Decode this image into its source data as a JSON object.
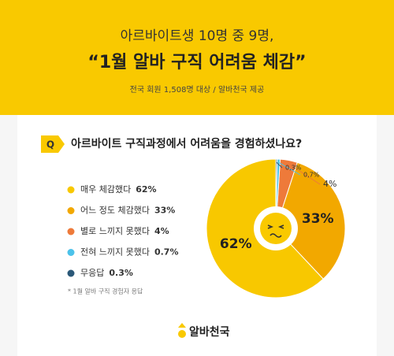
{
  "chart_data": {
    "type": "pie",
    "title": "아르바이트생 10명 중 9명,",
    "subtitle": "“1월 알바 구직 어려움 체감”",
    "source": "전국 회원 1,508명 대상 / 알바천국 제공",
    "question_badge": "Q",
    "question": "아르바이트 구직과정에서 어려움을 경험하셨나요?",
    "categories": [
      "매우 체감했다",
      "어느 정도 체감했다",
      "별로 느끼지 못했다",
      "전혀 느끼지 못했다",
      "무응답"
    ],
    "values": [
      62,
      33,
      4,
      0.7,
      0.3
    ],
    "value_labels": [
      "62%",
      "33%",
      "4%",
      "0.7%",
      "0.3%"
    ],
    "pie_labels": [
      "62%",
      "33%",
      "4%",
      "0,7%",
      "0,3%"
    ],
    "colors": [
      "#f8c800",
      "#f2a800",
      "#ee7a3a",
      "#4cc2ea",
      "#2b5878"
    ],
    "footnote": "* 1월 알바 구직 경험자 응답",
    "logo": "알바천국"
  }
}
